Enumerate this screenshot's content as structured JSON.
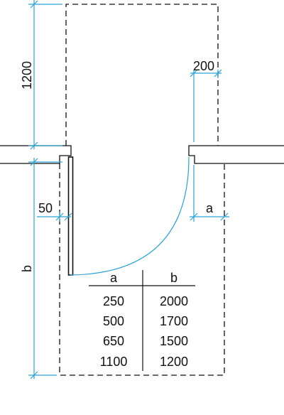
{
  "colors": {
    "line": "#111111",
    "dimension": "#29a3d6",
    "door_arc": "#29a3d6",
    "background": "#ffffff"
  },
  "dimensions": {
    "top": "1200",
    "opening_offset": "200",
    "wall_gap": "50",
    "a": "a",
    "b": "b"
  },
  "table": {
    "headers": [
      "a",
      "b"
    ],
    "rows": [
      [
        "250",
        "2000"
      ],
      [
        "500",
        "1700"
      ],
      [
        "650",
        "1500"
      ],
      [
        "1100",
        "1200"
      ]
    ]
  }
}
